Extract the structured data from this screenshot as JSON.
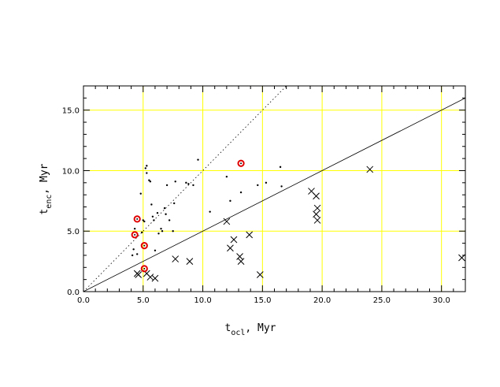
{
  "chart_data": {
    "type": "scatter",
    "title": "",
    "xlabel": {
      "main": "t",
      "sub": "ocl",
      "tail": ", Myr"
    },
    "ylabel": {
      "main": "t",
      "sub": "enc",
      "tail": ", Myr"
    },
    "xlim": [
      0,
      32
    ],
    "ylim": [
      0,
      17
    ],
    "xticks": [
      0,
      5,
      10,
      15,
      20,
      25,
      30
    ],
    "xtick_labels": [
      "0.0",
      "5.0",
      "10.0",
      "15.0",
      "20.0",
      "25.0",
      "30.0"
    ],
    "yticks": [
      0,
      5,
      10,
      15
    ],
    "ytick_labels": [
      "0.0",
      "5.0",
      "10.0",
      "15.0"
    ],
    "grid": true,
    "grid_color": "#ffff00",
    "reference_lines": [
      {
        "style": "solid",
        "slope": 0.5
      },
      {
        "style": "dotted",
        "slope": 1.0
      }
    ],
    "series": [
      {
        "marker": "dot",
        "color": "#000000",
        "x": [
          4.1,
          4.2,
          4.3,
          4.5,
          4.8,
          4.9,
          5.0,
          5.1,
          5.2,
          5.3,
          5.3,
          5.5,
          5.6,
          5.7,
          5.8,
          5.9,
          6.0,
          6.2,
          6.3,
          6.5,
          6.6,
          6.8,
          6.9,
          7.0,
          7.2,
          7.5,
          7.6,
          7.7,
          8.6,
          8.8,
          9.2,
          9.6,
          10.6,
          12.0,
          12.3,
          13.2,
          14.6,
          15.3,
          16.5,
          16.6
        ],
        "y": [
          3.0,
          3.5,
          5.2,
          3.1,
          8.1,
          4.9,
          5.9,
          5.8,
          10.2,
          10.4,
          9.8,
          9.2,
          9.1,
          7.2,
          6.2,
          5.9,
          3.4,
          6.5,
          4.8,
          5.2,
          5.0,
          6.9,
          6.4,
          8.8,
          5.9,
          5.0,
          7.3,
          9.1,
          9.0,
          8.9,
          8.8,
          10.9,
          6.6,
          9.5,
          7.5,
          8.2,
          8.8,
          9.0,
          10.3,
          8.7
        ]
      },
      {
        "marker": "x",
        "color": "#000000",
        "x": [
          4.5,
          4.6,
          5.3,
          5.6,
          6.0,
          7.7,
          8.9,
          12.0,
          12.3,
          12.6,
          13.1,
          13.2,
          13.9,
          14.8,
          19.1,
          19.5,
          19.5,
          19.6,
          19.6,
          24.0,
          31.7
        ],
        "y": [
          1.5,
          1.4,
          1.5,
          1.2,
          1.1,
          2.7,
          2.5,
          5.8,
          3.6,
          4.3,
          2.9,
          2.5,
          4.7,
          1.4,
          8.3,
          7.9,
          6.4,
          6.9,
          5.9,
          10.1,
          2.8
        ]
      },
      {
        "marker": "circle",
        "color": "#e00000",
        "x": [
          4.3,
          4.5,
          5.1,
          5.1,
          13.2
        ],
        "y": [
          4.7,
          6.0,
          3.8,
          1.9,
          10.6
        ]
      }
    ]
  }
}
